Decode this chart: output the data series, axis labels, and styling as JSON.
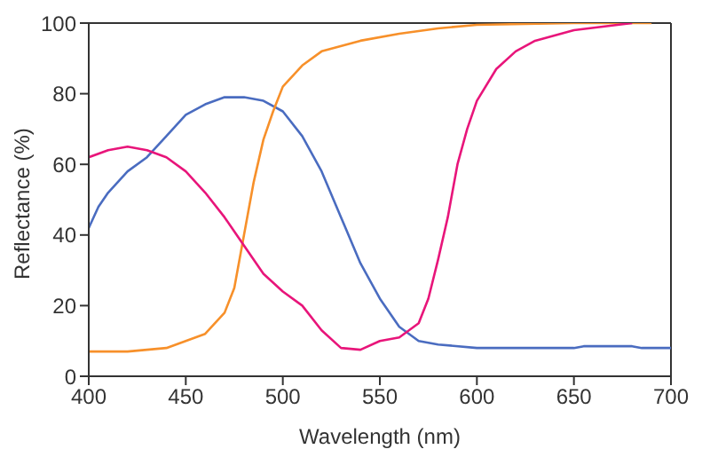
{
  "chart_data": {
    "type": "line",
    "xlabel": "Wavelength (nm)",
    "ylabel": "Reflectance (%)",
    "xlim": [
      400,
      700
    ],
    "ylim": [
      0,
      100
    ],
    "xticks": [
      400,
      450,
      500,
      550,
      600,
      650,
      700
    ],
    "yticks": [
      0,
      20,
      40,
      60,
      80,
      100
    ],
    "grid": false,
    "legend": false,
    "marker": "none",
    "line_style": "solid",
    "series": [
      {
        "color": "#4a6cc0",
        "x": [
          400,
          405,
          410,
          420,
          430,
          440,
          450,
          460,
          470,
          480,
          490,
          500,
          510,
          520,
          530,
          540,
          550,
          560,
          570,
          580,
          600,
          650,
          655,
          680,
          685,
          700
        ],
        "values": [
          42,
          48,
          52,
          58,
          62,
          68,
          74,
          77,
          79,
          79,
          78,
          75,
          68,
          58,
          45,
          32,
          22,
          14,
          10,
          9,
          8,
          8,
          8.5,
          8.5,
          8,
          8
        ]
      },
      {
        "color": "#f7902a",
        "x": [
          400,
          420,
          430,
          440,
          450,
          460,
          470,
          475,
          480,
          485,
          490,
          495,
          500,
          510,
          520,
          540,
          560,
          580,
          600,
          650,
          690
        ],
        "values": [
          7,
          7,
          7.5,
          8,
          10,
          12,
          18,
          25,
          40,
          55,
          67,
          75,
          82,
          88,
          92,
          95,
          97,
          98.5,
          99.5,
          100,
          100
        ]
      },
      {
        "color": "#e8157a",
        "x": [
          400,
          410,
          420,
          430,
          440,
          450,
          460,
          470,
          480,
          490,
          500,
          510,
          520,
          530,
          540,
          550,
          560,
          570,
          575,
          580,
          585,
          590,
          595,
          600,
          610,
          620,
          630,
          650,
          680
        ],
        "values": [
          62,
          64,
          65,
          64,
          62,
          58,
          52,
          45,
          37,
          29,
          24,
          20,
          13,
          8,
          7.5,
          10,
          11,
          15,
          22,
          33,
          45,
          60,
          70,
          78,
          87,
          92,
          95,
          98,
          100
        ]
      }
    ]
  }
}
